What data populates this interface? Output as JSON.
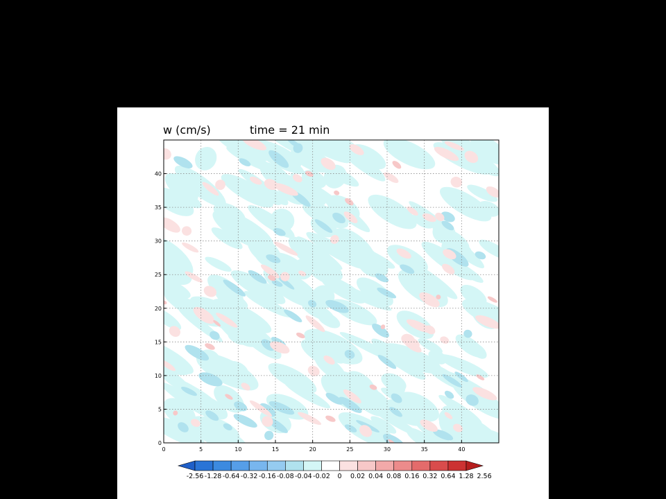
{
  "chart_data": {
    "type": "heatmap",
    "title": "w (cm/s)",
    "subtitle": "time = 21 min",
    "xlim": [
      0,
      45
    ],
    "ylim": [
      0,
      45
    ],
    "x_ticks": [
      "0",
      "5",
      "10",
      "15",
      "20",
      "25",
      "30",
      "35",
      "40"
    ],
    "y_ticks": [
      "0",
      "5",
      "10",
      "15",
      "20",
      "25",
      "30",
      "35",
      "40"
    ],
    "grid": true,
    "colorbar": {
      "labels": [
        "-2.56",
        "-1.28",
        "-0.64",
        "-0.32",
        "-0.16",
        "-0.08",
        "-0.04",
        "-0.02",
        "0",
        "0.02",
        "0.04",
        "0.08",
        "0.16",
        "0.32",
        "0.64",
        "1.28",
        "2.56"
      ],
      "colors": [
        "#1f5fc8",
        "#2a74d6",
        "#3c8ae0",
        "#569ee8",
        "#78b6ee",
        "#95cbf0",
        "#b0e2ee",
        "#d4f6f6",
        "#ffffff",
        "#fbe1e1",
        "#f7c8c8",
        "#f2a9a9",
        "#ec8b8b",
        "#e46b6b",
        "#d94c4c",
        "#cc3232",
        "#b51e1e"
      ],
      "extend": "both"
    }
  }
}
